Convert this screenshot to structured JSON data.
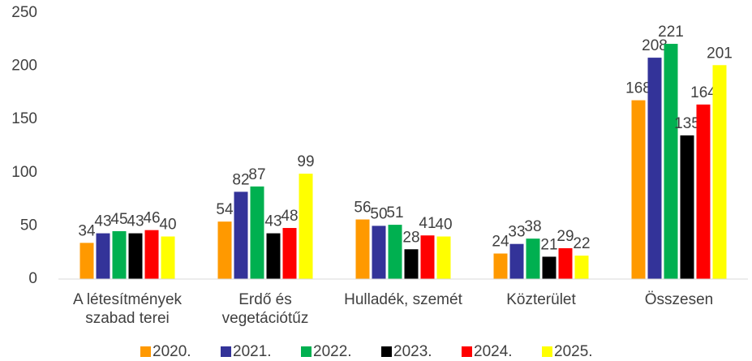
{
  "chart_data": {
    "type": "bar",
    "categories": [
      "A létesítmények szabad terei",
      "Erdő és vegetációtűz",
      "Hulladék, szemét",
      "Közterület",
      "Összesen"
    ],
    "series": [
      {
        "name": "2020.",
        "color": "#ff9900",
        "values": [
          34,
          54,
          56,
          24,
          168
        ]
      },
      {
        "name": "2021.",
        "color": "#333399",
        "values": [
          43,
          82,
          50,
          33,
          208
        ]
      },
      {
        "name": "2022.",
        "color": "#00b050",
        "values": [
          45,
          87,
          51,
          38,
          221
        ]
      },
      {
        "name": "2023.",
        "color": "#000000",
        "values": [
          43,
          43,
          28,
          21,
          135
        ]
      },
      {
        "name": "2024.",
        "color": "#ff0000",
        "values": [
          46,
          48,
          41,
          29,
          164
        ]
      },
      {
        "name": "2025.",
        "color": "#ffff00",
        "values": [
          40,
          99,
          40,
          22,
          201
        ]
      }
    ],
    "ylim": [
      0,
      250
    ],
    "yticks": [
      0,
      50,
      100,
      150,
      200,
      250
    ],
    "grid": false
  }
}
